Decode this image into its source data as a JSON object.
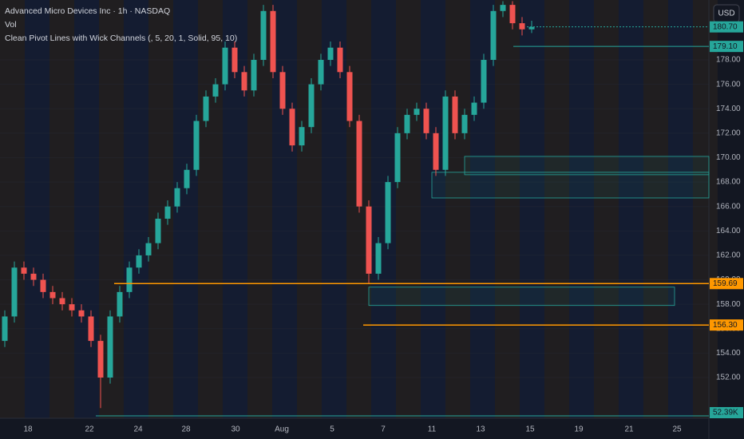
{
  "chart_data": {
    "type": "candlestick",
    "title": "Advanced Micro Devices Inc · 1h · NASDAQ",
    "subtitle": "Vol",
    "indicator": "Clean Pivot Lines with Wick Channels (, 5, 20, 1, Solid, 95, 10)",
    "currency": "USD",
    "up_color": "#26a69a",
    "down_color": "#ef5350",
    "open": [
      155,
      157,
      161,
      160.5,
      160,
      159,
      158.5,
      158,
      157.5,
      157,
      155,
      152,
      157,
      159,
      161,
      162,
      163,
      165,
      166,
      167.5,
      169,
      173,
      175,
      176,
      179,
      177,
      175.5,
      178,
      182,
      177,
      174,
      171,
      172.5,
      176,
      178,
      179,
      177,
      173,
      166,
      160.5,
      163,
      168,
      172,
      173.5,
      174,
      172,
      169,
      175,
      172,
      173.5,
      174.5,
      178,
      182,
      182.5,
      181,
      180.5
    ],
    "high": [
      157.5,
      161.5,
      161.5,
      161,
      160.5,
      159.5,
      159,
      158.5,
      158,
      157.5,
      155.5,
      157.5,
      159.5,
      161.5,
      162.5,
      163.5,
      165.5,
      166.5,
      168,
      169.5,
      173.5,
      175.5,
      176.5,
      179.5,
      179.5,
      177.5,
      178.5,
      182.5,
      182.5,
      177.5,
      174.5,
      173,
      176.5,
      178.5,
      179.5,
      179.5,
      177.5,
      173.5,
      166.5,
      163.5,
      168.5,
      172.5,
      174,
      174.5,
      174.5,
      172.5,
      175.5,
      175.5,
      174,
      175,
      178.5,
      182.5,
      182.8,
      182.8,
      181.5,
      181.2
    ],
    "low": [
      154.5,
      156.5,
      160,
      159.5,
      158.5,
      158,
      157.5,
      157,
      156.5,
      154.5,
      149.5,
      151.5,
      156.5,
      158.5,
      160.5,
      161.5,
      162.5,
      164.5,
      165.5,
      167,
      168.5,
      172.5,
      174.5,
      175.5,
      176.5,
      175,
      175,
      177.5,
      176.5,
      173.5,
      170.5,
      170.5,
      172,
      175.5,
      177.5,
      176.5,
      172.5,
      165.5,
      159.7,
      160,
      162.5,
      167.5,
      171.5,
      173,
      171.5,
      168.5,
      168.5,
      171.5,
      171.5,
      173,
      174,
      177.5,
      181.5,
      180.5,
      180,
      180.2
    ],
    "close": [
      157,
      161,
      160.5,
      160,
      159,
      158.5,
      158,
      157.5,
      157,
      155,
      152,
      157,
      159,
      161,
      162,
      163,
      165,
      166,
      167.5,
      169,
      173,
      175,
      176,
      179,
      177,
      175.5,
      178,
      182,
      177,
      174,
      171,
      172.5,
      176,
      178,
      179,
      177,
      173,
      166,
      160.5,
      163,
      168,
      172,
      173.5,
      174,
      172,
      169,
      175,
      172,
      173.5,
      174.5,
      178,
      182,
      182.5,
      181,
      180.5,
      180.7
    ],
    "ylim": [
      148.8,
      182.9
    ],
    "yticks": [
      {
        "value": 152,
        "label": "152.00"
      },
      {
        "value": 154,
        "label": "154.00"
      },
      {
        "value": 156,
        "label": "156.00"
      },
      {
        "value": 158,
        "label": "158.00"
      },
      {
        "value": 160,
        "label": "160.00"
      },
      {
        "value": 162,
        "label": "162.00"
      },
      {
        "value": 164,
        "label": "164.00"
      },
      {
        "value": 166,
        "label": "166.00"
      },
      {
        "value": 168,
        "label": "168.00"
      },
      {
        "value": 170,
        "label": "170.00"
      },
      {
        "value": 172,
        "label": "172.00"
      },
      {
        "value": 174,
        "label": "174.00"
      },
      {
        "value": 176,
        "label": "176.00"
      },
      {
        "value": 178,
        "label": "178.00"
      }
    ],
    "x_labels": [
      "18",
      "22",
      "24",
      "28",
      "30",
      "Aug",
      "5",
      "7",
      "11",
      "13",
      "15",
      "19",
      "21",
      "25"
    ],
    "price_levels": [
      {
        "value": 180.7,
        "label": "180.70",
        "color": "#26a69a"
      },
      {
        "value": 179.1,
        "label": "179.10",
        "color": "#26a69a"
      },
      {
        "value": 159.69,
        "label": "159.69",
        "color": "#ff9800"
      },
      {
        "value": 156.3,
        "label": "156.30",
        "color": "#ff9800"
      }
    ],
    "zones": [
      {
        "top": 170.1,
        "bottom": 168.6
      },
      {
        "top": 168.8,
        "bottom": 166.7
      },
      {
        "top": 159.4,
        "bottom": 157.9
      }
    ],
    "volume_label": "52.39K"
  }
}
